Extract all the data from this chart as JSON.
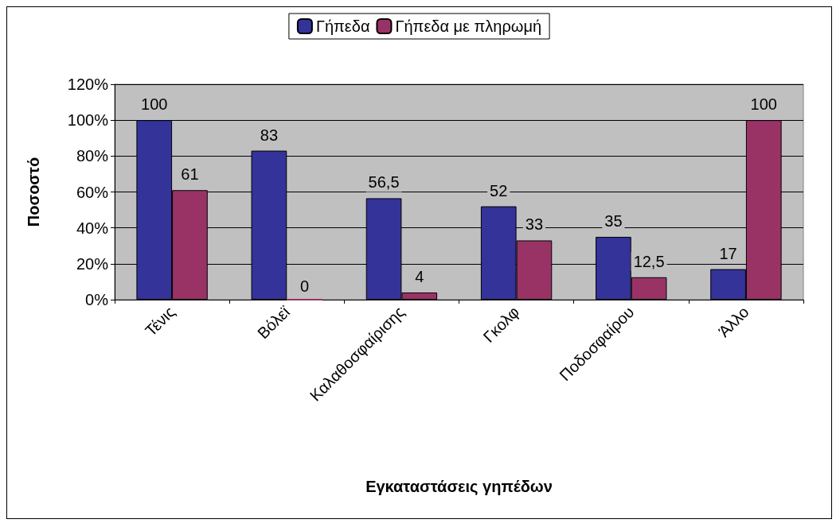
{
  "chart_data": {
    "type": "bar",
    "xlabel": "Εγκαταστάσεις γηπέδων",
    "ylabel": "Ποσοστό",
    "categories": [
      "Τένις",
      "Βόλεϊ",
      "Καλαθοσφαίρισης",
      "Γκολφ",
      "Ποδοσφαίρου",
      "Άλλο"
    ],
    "series": [
      {
        "name": "Γήπεδα",
        "color": "#333399",
        "values": [
          100,
          83,
          56.5,
          52,
          35,
          17
        ],
        "value_labels": [
          "100",
          "83",
          "56,5",
          "52",
          "35",
          "17"
        ]
      },
      {
        "name": "Γήπεδα με πληρωμή",
        "color": "#993366",
        "values": [
          61,
          0,
          4,
          33,
          12.5,
          100
        ],
        "value_labels": [
          "61",
          "0",
          "4",
          "33",
          "12,5",
          "100"
        ]
      }
    ],
    "ylim": [
      0,
      120
    ],
    "yticks": [
      {
        "value": 0,
        "label": "0%"
      },
      {
        "value": 20,
        "label": "20%"
      },
      {
        "value": 40,
        "label": "40%"
      },
      {
        "value": 60,
        "label": "60%"
      },
      {
        "value": 80,
        "label": "80%"
      },
      {
        "value": 100,
        "label": "100%"
      },
      {
        "value": 120,
        "label": "120%"
      }
    ],
    "grid": "y",
    "legend": "top"
  }
}
